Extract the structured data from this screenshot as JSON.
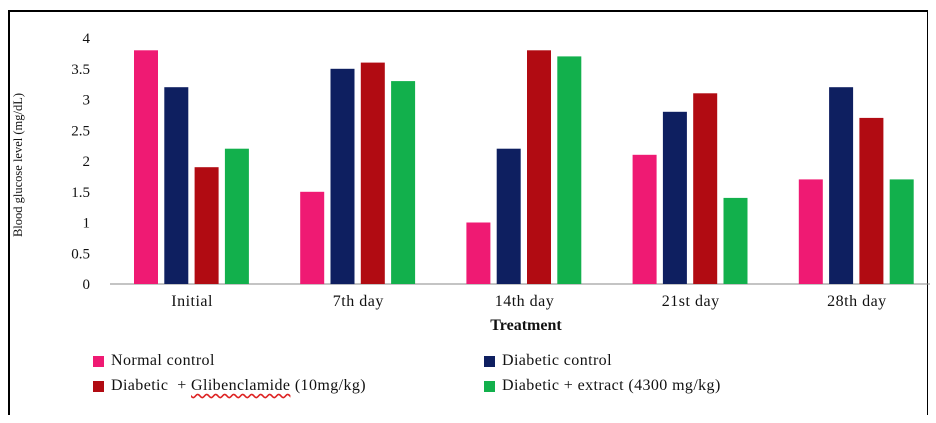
{
  "chart_data": {
    "type": "bar",
    "xlabel": "Treatment",
    "ylabel": "Blood glucose level (mg/dL)",
    "ylim": [
      0,
      4
    ],
    "yticks": [
      "0",
      "0.5",
      "1",
      "1.5",
      "2",
      "2.5",
      "3",
      "3.5",
      "4"
    ],
    "grid": false,
    "legend_position": "bottom",
    "categories": [
      "Initial",
      "7th day",
      "14th day",
      "21st day",
      "28th day"
    ],
    "series": [
      {
        "name": "Normal control",
        "color": "#ef1a73",
        "values": [
          3.8,
          1.5,
          1.0,
          2.1,
          1.7
        ]
      },
      {
        "name": "Diabetic control",
        "color": "#0e1f60",
        "values": [
          3.2,
          3.5,
          2.2,
          2.8,
          3.2
        ]
      },
      {
        "name": "Diabetic + Glibenclamide (10mg/kg)",
        "color": "#b10b12",
        "values": [
          1.9,
          3.6,
          3.8,
          3.1,
          2.7
        ]
      },
      {
        "name": "Diabetic + extract (4300 mg/kg)",
        "color": "#12b04c",
        "values": [
          2.2,
          3.3,
          3.7,
          1.4,
          1.7
        ]
      }
    ]
  },
  "legend": {
    "normal": "Normal control",
    "diabetic": "Diabetic control",
    "glib_prefix": "Diabetic  + ",
    "glib_word": "Glibenclamide",
    "glib_suffix": " (10mg/kg)",
    "extract": "Diabetic + extract (4300 mg/kg)"
  }
}
